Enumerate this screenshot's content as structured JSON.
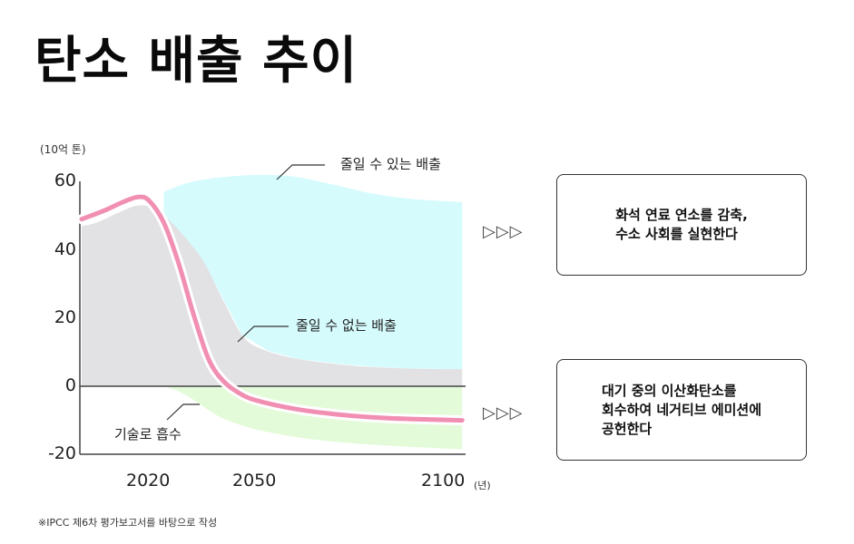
{
  "title": "탄소 배출 추이",
  "chart_data": {
    "type": "area",
    "unit_label": "(10억 톤)",
    "x_unit_label": "(년)",
    "xlim": [
      2002,
      2105
    ],
    "ylim": [
      -20,
      60
    ],
    "y_ticks": [
      "60",
      "40",
      "20",
      "0",
      "-20"
    ],
    "x_ticks": [
      "2020",
      "2050",
      "2100"
    ],
    "grid": false,
    "series": [
      {
        "name": "줄일 수 없는 배출",
        "kind": "area",
        "color": "#e2e1e4",
        "x": [
          2002,
          2006,
          2012,
          2017,
          2022,
          2027,
          2031,
          2035,
          2040,
          2045,
          2050,
          2060,
          2075,
          2090,
          2104
        ],
        "y": [
          47,
          48,
          51,
          53,
          52,
          47,
          42,
          36,
          25,
          15,
          11,
          8,
          6,
          5.2,
          5
        ]
      },
      {
        "name": "줄일 수 있는 배출",
        "kind": "area-upper",
        "color": "#d6fbfd",
        "x": [
          2024,
          2030,
          2037,
          2045,
          2052,
          2060,
          2070,
          2080,
          2090,
          2104
        ],
        "y": [
          57,
          59.5,
          61,
          61.8,
          62,
          61.3,
          59,
          56.5,
          55,
          54
        ]
      },
      {
        "name": "기술로 흡수",
        "kind": "area-negative",
        "color": "#e3fbd9",
        "x": [
          2024,
          2028,
          2032,
          2036,
          2040,
          2045,
          2050,
          2060,
          2070,
          2085,
          2104
        ],
        "y": [
          0,
          -1.5,
          -4,
          -7,
          -9.5,
          -11.5,
          -13,
          -15,
          -16.3,
          -17.5,
          -18.5
        ]
      },
      {
        "kind": "line",
        "color": "#f18fb2",
        "x": [
          2002,
          2008,
          2013,
          2017,
          2020,
          2024,
          2028,
          2032,
          2036,
          2040,
          2045,
          2050,
          2060,
          2070,
          2080,
          2090,
          2104
        ],
        "y": [
          49,
          51.5,
          54,
          55.5,
          54.5,
          48,
          36,
          21,
          8,
          1.5,
          -2.5,
          -4.5,
          -6.8,
          -8.2,
          -9.1,
          -9.6,
          -10
        ]
      }
    ],
    "annotations": [
      "줄일 수 있는 배출",
      "줄일 수 없는 배출",
      "기술로 흡수"
    ]
  },
  "boxes": [
    {
      "arrow": "▷▷▷",
      "text": "화석 연료 연소를 감축,\n수소 사회를 실현한다"
    },
    {
      "arrow": "▷▷▷",
      "text": "대기 중의 이산화탄소를\n회수하여 네거티브 에미션에\n공헌한다"
    }
  ],
  "footnote": "※IPCC 제6차 평가보고서를 바탕으로 작성"
}
